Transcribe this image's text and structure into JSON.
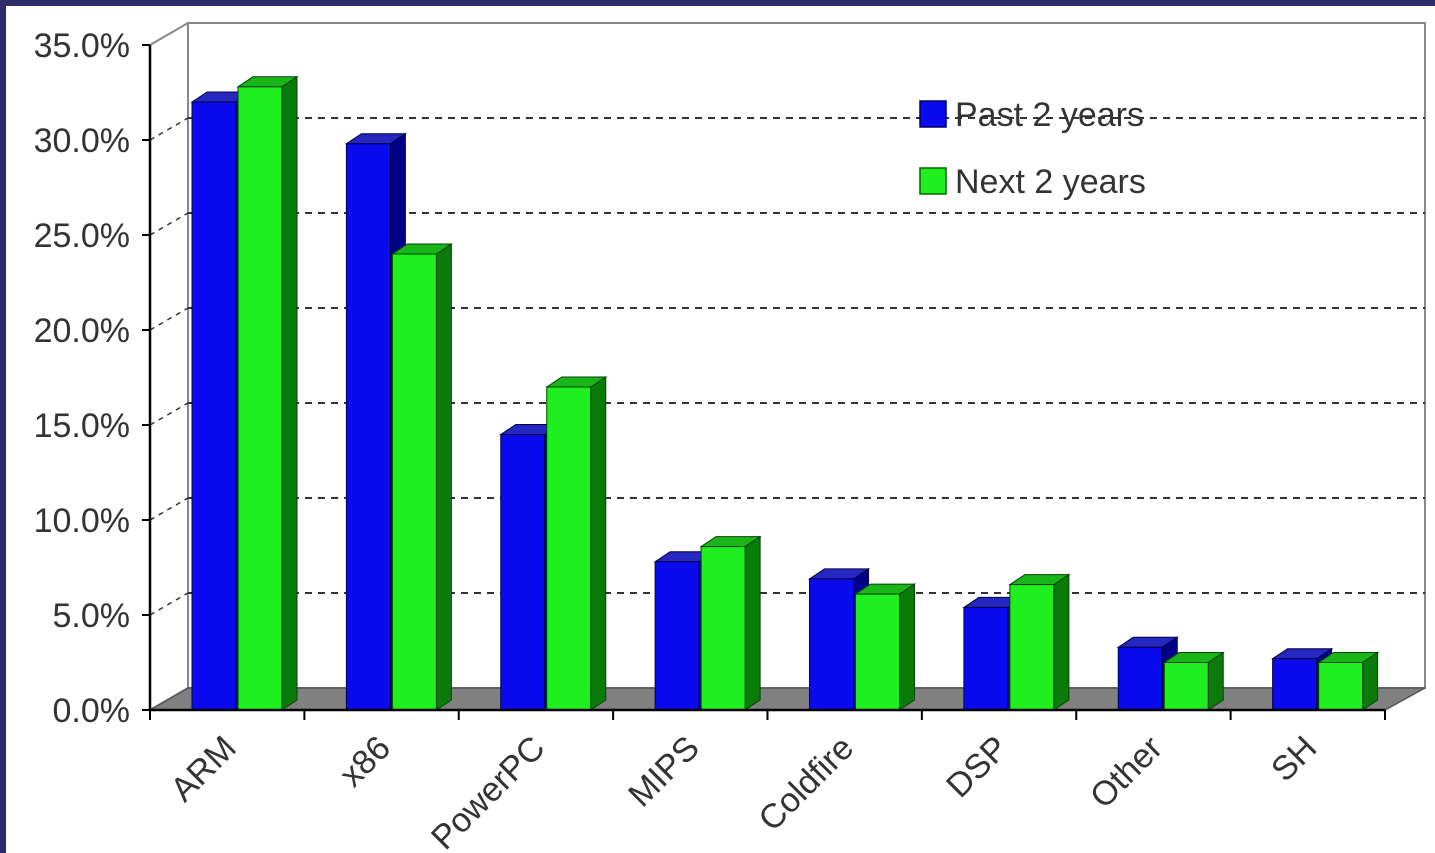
{
  "chart_data": {
    "type": "bar",
    "categories": [
      "ARM",
      "x86",
      "PowerPC",
      "MIPS",
      "Coldfire",
      "DSP",
      "Other",
      "SH"
    ],
    "series": [
      {
        "name": "Past 2 years",
        "values": [
          32.0,
          29.8,
          14.5,
          7.8,
          6.9,
          5.4,
          3.3,
          2.7
        ]
      },
      {
        "name": "Next 2 years",
        "values": [
          32.8,
          24.0,
          17.0,
          8.6,
          6.1,
          6.6,
          2.5,
          2.5
        ]
      }
    ],
    "y_ticks": [
      "0.0%",
      "5.0%",
      "10.0%",
      "15.0%",
      "20.0%",
      "25.0%",
      "30.0%",
      "35.0%"
    ],
    "ylim": [
      0,
      35
    ],
    "grid": true,
    "legend_position": "top-right",
    "colors": {
      "Past 2 years": "#0a0aee",
      "Next 2 years": "#1fee1f",
      "floor": "#808080",
      "background": "#2d2d6b"
    }
  }
}
